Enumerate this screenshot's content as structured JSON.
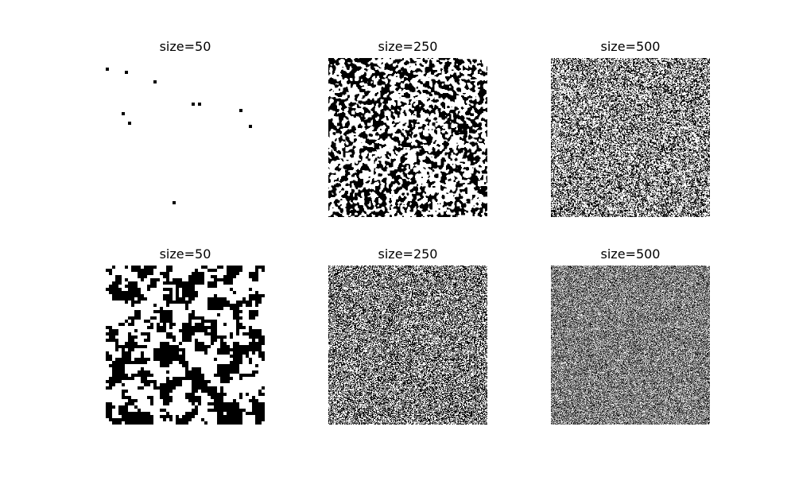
{
  "panels": [
    {
      "title": "size=50",
      "size": 50,
      "black_fraction": 0.004,
      "clustering": 0.0
    },
    {
      "title": "size=250",
      "size": 250,
      "black_fraction": 0.45,
      "clustering": 4.0
    },
    {
      "title": "size=500",
      "size": 500,
      "black_fraction": 0.45,
      "clustering": 1.0
    },
    {
      "title": "size=50",
      "size": 50,
      "black_fraction": 0.45,
      "clustering": 1.0
    },
    {
      "title": "size=250",
      "size": 250,
      "black_fraction": 0.5,
      "clustering": 0.0
    },
    {
      "title": "size=500",
      "size": 500,
      "black_fraction": 0.5,
      "clustering": 0.0
    }
  ],
  "colors": {
    "spin_down": "#000000",
    "spin_up": "#ffffff",
    "background": "#ffffff"
  }
}
